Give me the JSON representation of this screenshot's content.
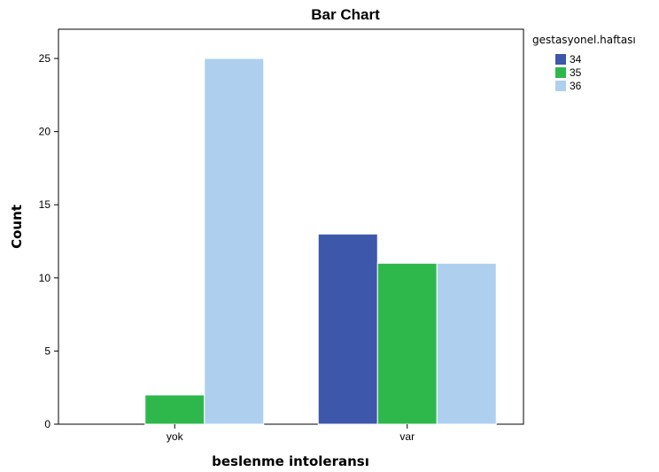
{
  "chart_data": {
    "type": "bar",
    "title": "Bar Chart",
    "xlabel": "beslenme intoleransı",
    "ylabel": "Count",
    "categories": [
      "yok",
      "var"
    ],
    "series": [
      {
        "name": "34",
        "color": "#3d57ab",
        "values": [
          0,
          13
        ]
      },
      {
        "name": "35",
        "color": "#2eb84c",
        "values": [
          2,
          11
        ]
      },
      {
        "name": "36",
        "color": "#aed0ee",
        "values": [
          25,
          11
        ]
      }
    ],
    "legend_title": "gestasyonel.haftası",
    "legend_position": "top-right",
    "ylim": [
      0,
      27
    ],
    "yticks": [
      0,
      5,
      10,
      15,
      20,
      25
    ],
    "grid": false
  }
}
